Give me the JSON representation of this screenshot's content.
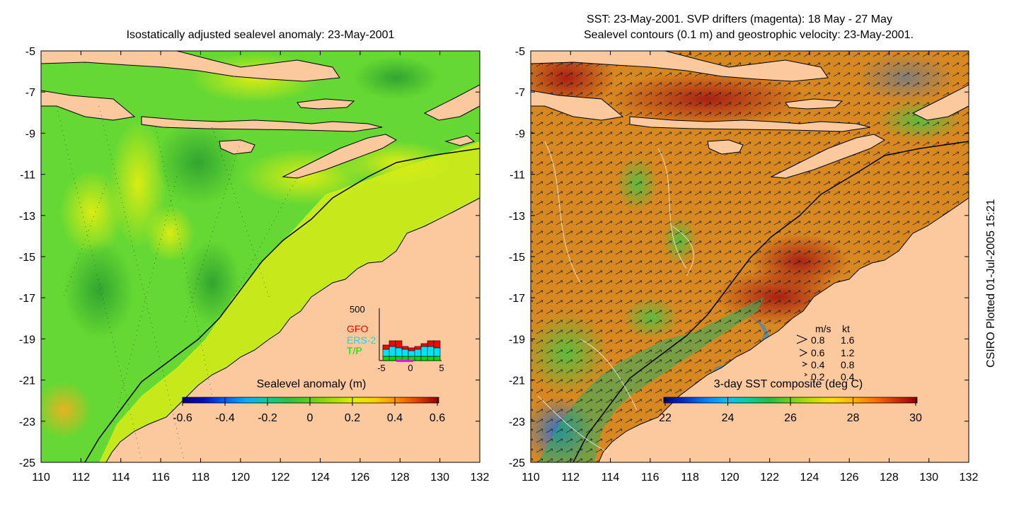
{
  "left_panel": {
    "title": "Isostatically adjusted sealevel anomaly: 23-May-2001",
    "colorbar": {
      "label": "Sealevel anomaly (m)",
      "ticks": [
        "-0.6",
        "-0.4",
        "-0.2",
        "0",
        "0.2",
        "0.4",
        "0.6"
      ],
      "colors": [
        "#00007a",
        "#0010c0",
        "#0060ff",
        "#00b0ff",
        "#00d090",
        "#30c040",
        "#60d020",
        "#a0e000",
        "#e0f000",
        "#ffd000",
        "#ff9000",
        "#e04000",
        "#900000"
      ]
    },
    "inset": {
      "ymax_label": "500",
      "x_ticks": [
        "-5",
        "0",
        "5"
      ],
      "legend": [
        {
          "label": "GFO",
          "color": "#ff0000"
        },
        {
          "label": "ERS-2",
          "color": "#00e0ff"
        },
        {
          "label": "T/P",
          "color": "#00e000"
        }
      ]
    }
  },
  "right_panel": {
    "title_line1": "SST: 23-May-2001. SVP drifters (magenta): 18 May - 27 May",
    "title_line2": "Sealevel contours (0.1 m) and geostrophic velocity: 23-May-2001.",
    "colorbar": {
      "label": "3-day SST composite (deg C)",
      "ticks": [
        "22",
        "24",
        "26",
        "28",
        "30"
      ],
      "colors": [
        "#00007a",
        "#0030d0",
        "#0080ff",
        "#00c0ff",
        "#00d0a0",
        "#20c040",
        "#70d020",
        "#c0e000",
        "#ffe000",
        "#ffb000",
        "#ff7000",
        "#d03000",
        "#900000"
      ]
    },
    "velocity_legend": {
      "header_ms": "m/s",
      "header_kt": "kt",
      "rows": [
        {
          "ms": "0.8",
          "kt": "1.6"
        },
        {
          "ms": "0.6",
          "kt": "1.2"
        },
        {
          "ms": "0.4",
          "kt": "0.8"
        },
        {
          "ms": "0.2",
          "kt": "0.4"
        }
      ]
    }
  },
  "axes": {
    "x_ticks": [
      "110",
      "112",
      "114",
      "116",
      "118",
      "120",
      "122",
      "124",
      "126",
      "128",
      "130",
      "132"
    ],
    "y_ticks": [
      "-5",
      "-7",
      "-9",
      "-11",
      "-13",
      "-15",
      "-17",
      "-19",
      "-21",
      "-23",
      "-25"
    ],
    "lon_range": [
      110,
      132
    ],
    "lat_range": [
      -25,
      -5
    ]
  },
  "colors": {
    "land": "#fcc89e",
    "ocean_left": "#66d833",
    "ocean_right": "#d88820"
  },
  "side_note": "CSIRO Plotted 01-Jul-2005 15:21"
}
